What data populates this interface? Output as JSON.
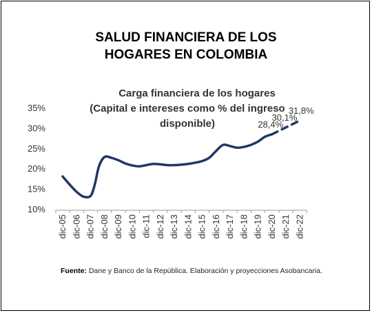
{
  "header": {
    "title_line1": "SALUD FINANCIERA DE LOS",
    "title_line2": "HOGARES EN COLOMBIA"
  },
  "chart_data": {
    "type": "line",
    "title_line1": "Carga financiera de los hogares",
    "title_line2": "(Capital e intereses como % del ingreso",
    "title_line3": "disponible)",
    "categories": [
      "dic-05",
      "dic-06",
      "dic-07",
      "dic-08",
      "dic-09",
      "dic-10",
      "dic-11",
      "dic-12",
      "dic-13",
      "dic-14",
      "dic-15",
      "dic-16",
      "dic-17",
      "dic-18",
      "dic-19",
      "dic-20",
      "dic-21",
      "dic-22"
    ],
    "series": [
      {
        "style": "solid",
        "color": "#203864",
        "x": [
          0,
          0.5,
          1,
          1.5,
          2,
          2.3,
          2.6,
          3,
          3.5,
          4,
          4.5,
          5,
          5.5,
          6,
          6.5,
          7,
          7.5,
          8,
          8.5,
          9,
          9.5,
          10,
          10.5,
          11,
          11.5,
          12,
          12.5,
          13,
          13.5,
          14,
          14.5,
          15
        ],
        "values": [
          18.0,
          16.0,
          14.2,
          13.0,
          13.2,
          16.0,
          20.5,
          22.8,
          22.6,
          22.0,
          21.2,
          20.7,
          20.5,
          20.8,
          21.1,
          21.0,
          20.8,
          20.8,
          20.9,
          21.1,
          21.4,
          21.8,
          22.6,
          24.3,
          25.8,
          25.5,
          25.1,
          25.3,
          25.8,
          26.6,
          27.8,
          28.4
        ]
      },
      {
        "style": "dashed",
        "color": "#203864",
        "x": [
          15,
          16,
          17
        ],
        "values": [
          28.4,
          30.1,
          31.8
        ]
      }
    ],
    "data_labels": [
      {
        "x": 15,
        "y": 28.4,
        "text": "28,4%"
      },
      {
        "x": 16,
        "y": 30.1,
        "text": "30,1%"
      },
      {
        "x": 17,
        "y": 31.8,
        "text": "31,8%"
      }
    ],
    "yticks": [
      10,
      15,
      20,
      25,
      30,
      35
    ],
    "ytick_labels": [
      "10%",
      "15%",
      "20%",
      "25%",
      "30%",
      "35%"
    ],
    "ylim": [
      10,
      35
    ],
    "grid": false
  },
  "source": {
    "label": "Fuente:",
    "text": "Dane y Banco de la República. Elaboración y proyecciones Asobancaria."
  }
}
